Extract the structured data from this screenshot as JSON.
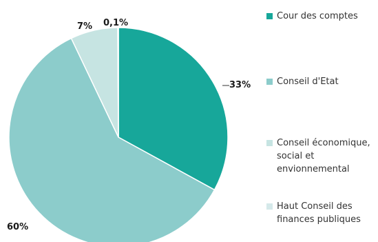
{
  "chart_data": {
    "type": "pie",
    "title": "",
    "slices": [
      {
        "label": "Cour des comptes",
        "value": 33,
        "value_label": "33%",
        "color": "#17a79a"
      },
      {
        "label": "Conseil d'Etat",
        "value": 60,
        "value_label": "60%",
        "color": "#8ccccb"
      },
      {
        "label": "Conseil économique, social et envionnemental",
        "value": 7,
        "value_label": "7%",
        "color": "#c6e4e2"
      },
      {
        "label": "Haut Conseil des finances publiques",
        "value": 0.1,
        "value_label": "0,1%",
        "color": "#d5e9ea"
      }
    ],
    "legend_position": "right",
    "start_angle": "top",
    "direction": "clockwise"
  }
}
